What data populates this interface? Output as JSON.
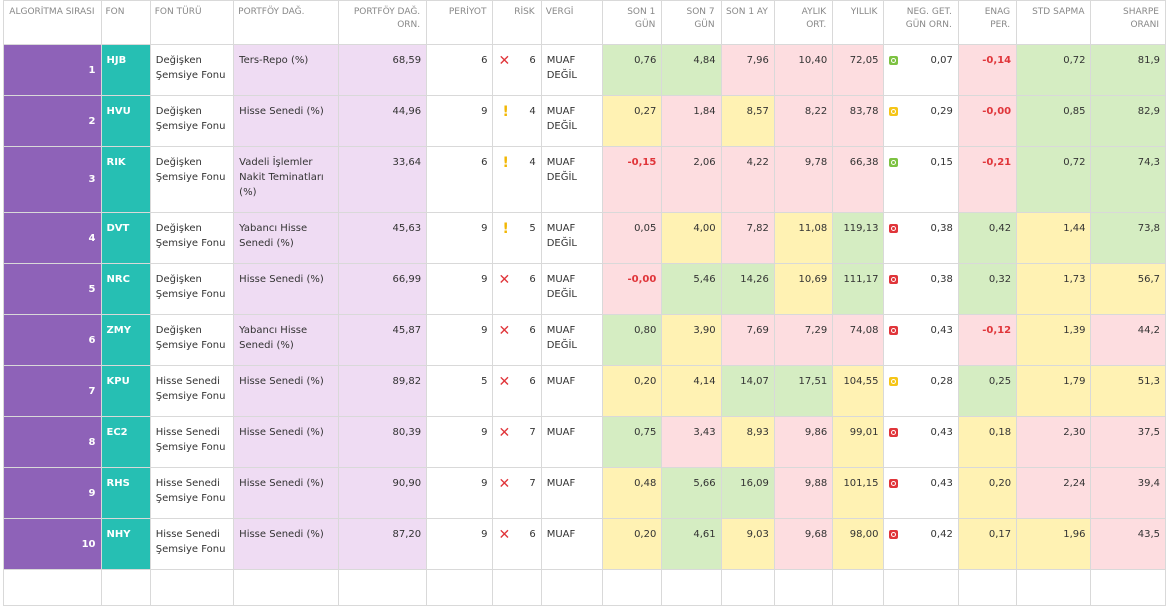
{
  "headers": {
    "rank": "ALGORİTMA SIRASI",
    "fund": "FON",
    "fund_type": "FON TÜRÜ",
    "portfolio": "PORTFÖY DAĞ.",
    "portfolio_ratio": "PORTFÖY DAĞ. ORN.",
    "period": "PERİYOT",
    "risk": "RİSK",
    "tax": "VERGİ",
    "day1": "SON 1 GÜN",
    "day7": "SON 7 GÜN",
    "month1": "SON 1 AY",
    "monthly_avg": "AYLIK ORT.",
    "yearly": "YILLIK",
    "neg_days": "NEG. GET. GÜN ORN.",
    "inflation": "ENAG PER.",
    "std": "STD SAPMA",
    "sharpe": "SHARPE ORANI"
  },
  "rows": [
    {
      "rank": "1",
      "fund": "HJB",
      "type": "Değişken Şemsiye Fonu",
      "dist": "Ters-Repo (%)",
      "ratio": "68,59",
      "period": "6",
      "risk_icon": "x-icon",
      "risk": "6",
      "tax": "MUAF DEĞİL",
      "d1": "0,76",
      "d7": "4,84",
      "m1": "7,96",
      "mavg": "10,40",
      "yearly": "72,05",
      "sig": "green",
      "neg": "0,07",
      "enag": "-0,14",
      "std": "0,72",
      "sharpe": "81,9"
    },
    {
      "rank": "2",
      "fund": "HVU",
      "type": "Değişken Şemsiye Fonu",
      "dist": "Hisse Senedi (%)",
      "ratio": "44,96",
      "period": "9",
      "risk_icon": "warning-icon",
      "risk": "4",
      "tax": "MUAF DEĞİL",
      "d1": "0,27",
      "d7": "1,84",
      "m1": "8,57",
      "mavg": "8,22",
      "yearly": "83,78",
      "sig": "yellow",
      "neg": "0,29",
      "enag": "-0,00",
      "std": "0,85",
      "sharpe": "82,9"
    },
    {
      "rank": "3",
      "fund": "RIK",
      "type": "Değişken Şemsiye Fonu",
      "dist": "Vadeli İşlemler Nakit Teminatları (%)",
      "ratio": "33,64",
      "period": "6",
      "risk_icon": "warning-icon",
      "risk": "4",
      "tax": "MUAF DEĞİL",
      "d1": "-0,15",
      "d7": "2,06",
      "m1": "4,22",
      "mavg": "9,78",
      "yearly": "66,38",
      "sig": "green",
      "neg": "0,15",
      "enag": "-0,21",
      "std": "0,72",
      "sharpe": "74,3"
    },
    {
      "rank": "4",
      "fund": "DVT",
      "type": "Değişken Şemsiye Fonu",
      "dist": "Yabancı Hisse Senedi (%)",
      "ratio": "45,63",
      "period": "9",
      "risk_icon": "warning-icon",
      "risk": "5",
      "tax": "MUAF DEĞİL",
      "d1": "0,05",
      "d7": "4,00",
      "m1": "7,82",
      "mavg": "11,08",
      "yearly": "119,13",
      "sig": "red",
      "neg": "0,38",
      "enag": "0,42",
      "std": "1,44",
      "sharpe": "73,8"
    },
    {
      "rank": "5",
      "fund": "NRC",
      "type": "Değişken Şemsiye Fonu",
      "dist": "Hisse Senedi (%)",
      "ratio": "66,99",
      "period": "9",
      "risk_icon": "x-icon",
      "risk": "6",
      "tax": "MUAF DEĞİL",
      "d1": "-0,00",
      "d7": "5,46",
      "m1": "14,26",
      "mavg": "10,69",
      "yearly": "111,17",
      "sig": "red",
      "neg": "0,38",
      "enag": "0,32",
      "std": "1,73",
      "sharpe": "56,7"
    },
    {
      "rank": "6",
      "fund": "ZMY",
      "type": "Değişken Şemsiye Fonu",
      "dist": "Yabancı Hisse Senedi (%)",
      "ratio": "45,87",
      "period": "9",
      "risk_icon": "x-icon",
      "risk": "6",
      "tax": "MUAF DEĞİL",
      "d1": "0,80",
      "d7": "3,90",
      "m1": "7,69",
      "mavg": "7,29",
      "yearly": "74,08",
      "sig": "red",
      "neg": "0,43",
      "enag": "-0,12",
      "std": "1,39",
      "sharpe": "44,2"
    },
    {
      "rank": "7",
      "fund": "KPU",
      "type": "Hisse Senedi Şemsiye Fonu",
      "dist": "Hisse Senedi (%)",
      "ratio": "89,82",
      "period": "5",
      "risk_icon": "x-icon",
      "risk": "6",
      "tax": "MUAF",
      "d1": "0,20",
      "d7": "4,14",
      "m1": "14,07",
      "mavg": "17,51",
      "yearly": "104,55",
      "sig": "yellow",
      "neg": "0,28",
      "enag": "0,25",
      "std": "1,79",
      "sharpe": "51,3"
    },
    {
      "rank": "8",
      "fund": "EC2",
      "type": "Hisse Senedi Şemsiye Fonu",
      "dist": "Hisse Senedi (%)",
      "ratio": "80,39",
      "period": "9",
      "risk_icon": "x-icon",
      "risk": "7",
      "tax": "MUAF",
      "d1": "0,75",
      "d7": "3,43",
      "m1": "8,93",
      "mavg": "9,86",
      "yearly": "99,01",
      "sig": "red",
      "neg": "0,43",
      "enag": "0,18",
      "std": "2,30",
      "sharpe": "37,5"
    },
    {
      "rank": "9",
      "fund": "RHS",
      "type": "Hisse Senedi Şemsiye Fonu",
      "dist": "Hisse Senedi (%)",
      "ratio": "90,90",
      "period": "9",
      "risk_icon": "x-icon",
      "risk": "7",
      "tax": "MUAF",
      "d1": "0,48",
      "d7": "5,66",
      "m1": "16,09",
      "mavg": "9,88",
      "yearly": "101,15",
      "sig": "red",
      "neg": "0,43",
      "enag": "0,20",
      "std": "2,24",
      "sharpe": "39,4"
    },
    {
      "rank": "10",
      "fund": "NHY",
      "type": "Hisse Senedi Şemsiye Fonu",
      "dist": "Hisse Senedi (%)",
      "ratio": "87,20",
      "period": "9",
      "risk_icon": "x-icon",
      "risk": "6",
      "tax": "MUAF",
      "d1": "0,20",
      "d7": "4,61",
      "m1": "9,03",
      "mavg": "9,68",
      "yearly": "98,00",
      "sig": "red",
      "neg": "0,42",
      "enag": "0,17",
      "std": "1,96",
      "sharpe": "43,5"
    }
  ],
  "colors": {
    "rank_bg": "#8e62b8",
    "fund_bg": "#26bfb3",
    "dist_bg": "#efdcf3",
    "good": "#d5edc2",
    "mid": "#fff2b3",
    "bad": "#fddde0",
    "negative_text": "#e0353a"
  }
}
